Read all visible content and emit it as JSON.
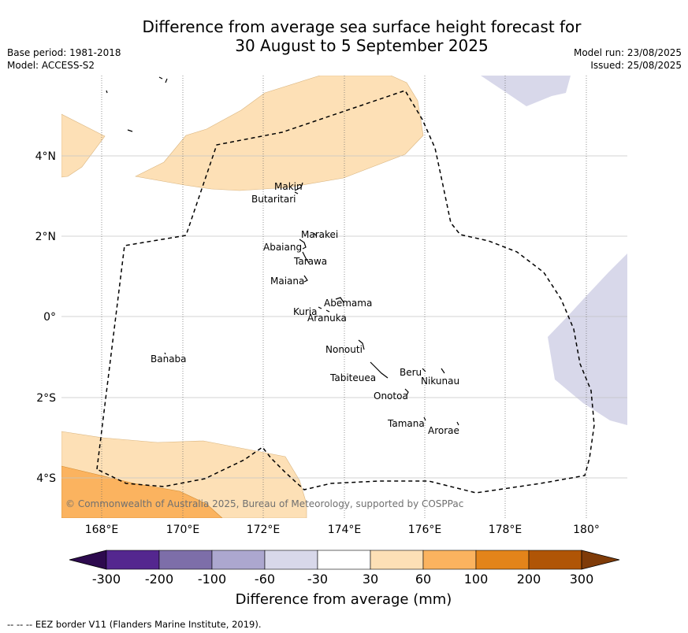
{
  "title": {
    "line1": "Difference from average sea surface height forecast for",
    "line2": "30 August to 5 September 2025"
  },
  "meta_left": {
    "base_period": "Base period: 1981-2018",
    "model": "Model: ACCESS-S2"
  },
  "meta_right": {
    "model_run": "Model run: 23/08/2025",
    "issued": "Issued: 25/08/2025"
  },
  "map": {
    "lon_ticks": [
      "168°E",
      "170°E",
      "172°E",
      "174°E",
      "176°E",
      "178°E",
      "180°"
    ],
    "lat_ticks": [
      "4°N",
      "2°N",
      "0°",
      "2°S",
      "4°S"
    ],
    "copyright": "© Commonwealth of Australia 2025, Bureau of Meteorology, supported by COSPPac",
    "places": [
      "Makin",
      "Butaritari",
      "Marakei",
      "Abaiang",
      "Tarawa",
      "Maiana",
      "Abemama",
      "Kuria",
      "Aranuka",
      "Banaba",
      "Nonouti",
      "Beru",
      "Nikunau",
      "Tabiteuea",
      "Onotoa",
      "Tamana",
      "Arorae"
    ]
  },
  "colorbar": {
    "label": "Difference from average (mm)",
    "ticks": [
      "-300",
      "-200",
      "-100",
      "-60",
      "-30",
      "30",
      "60",
      "100",
      "200",
      "300"
    ],
    "colors": [
      "#2d0a4e",
      "#54278f",
      "#7d6ea9",
      "#aca7cf",
      "#d8d8ea",
      "#ffffff",
      "#fde0b6",
      "#fbb35f",
      "#e3841a",
      "#b05506",
      "#7f3b08"
    ]
  },
  "footnote": "--  --  -- EEZ border V11 (Flanders Marine Institute, 2019)."
}
